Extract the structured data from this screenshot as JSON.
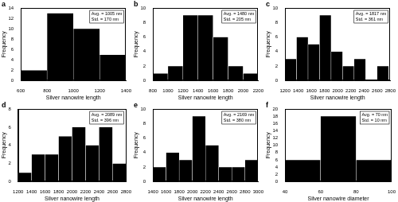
{
  "chart_data": [
    {
      "type": "histogram",
      "title": "a",
      "x_label": "Silver nanowire length",
      "y_label": "Frequency",
      "bins": [
        600,
        800,
        1000,
        1200,
        1400
      ],
      "values": [
        2,
        13,
        10,
        5
      ],
      "color": "#000000",
      "xlim": [
        600,
        1400
      ],
      "xticks": [
        600,
        800,
        1000,
        1200,
        1400
      ],
      "ylim": [
        0,
        14
      ],
      "yticks": [
        0,
        2,
        4,
        6,
        8,
        10,
        12,
        14
      ],
      "grid": false,
      "annotations": [
        "Avg. = 1005 nm",
        "Std. = 170 nm"
      ]
    },
    {
      "type": "histogram",
      "title": "b",
      "x_label": "Silver nanowire length",
      "y_label": "Frequency",
      "bins": [
        800,
        1000,
        1200,
        1400,
        1600,
        1800,
        2000,
        2200
      ],
      "values": [
        1,
        2,
        9,
        9,
        6,
        2,
        1
      ],
      "color": "#000000",
      "xlim": [
        800,
        2200
      ],
      "xticks": [
        800,
        1000,
        1200,
        1400,
        1600,
        1800,
        2000,
        2200
      ],
      "ylim": [
        0,
        10
      ],
      "yticks": [
        0,
        2,
        4,
        6,
        8,
        10
      ],
      "grid": false,
      "annotations": [
        "Avg. = 1480 nm",
        "Std. = 205 nm"
      ]
    },
    {
      "type": "histogram",
      "title": "c",
      "x_label": "Silver nanowire length",
      "y_label": "Frequency",
      "bins": [
        1200,
        1375,
        1550,
        1725,
        1900,
        2075,
        2250,
        2425,
        2600,
        2775
      ],
      "values": [
        3,
        6,
        5,
        9,
        4,
        2,
        3,
        0,
        2
      ],
      "color": "#000000",
      "xlim": [
        1200,
        2800
      ],
      "xticks": [
        1200,
        1400,
        1600,
        1800,
        2000,
        2200,
        2400,
        2600,
        2800
      ],
      "ylim": [
        0,
        10
      ],
      "yticks": [
        0,
        2,
        4,
        6,
        8,
        10
      ],
      "grid": false,
      "annotations": [
        "Avg. = 1817 nm",
        "Std. = 361 nm"
      ]
    },
    {
      "type": "histogram",
      "title": "d",
      "x_label": "Silver nanowire length",
      "y_label": "Frequency",
      "bins": [
        1200,
        1400,
        1600,
        1800,
        2000,
        2200,
        2400,
        2600,
        2800
      ],
      "values": [
        1,
        3,
        3,
        5,
        6,
        4,
        6,
        2
      ],
      "color": "#000000",
      "xlim": [
        1200,
        2800
      ],
      "xticks": [
        1200,
        1400,
        1600,
        1800,
        2000,
        2200,
        2400,
        2600,
        2800
      ],
      "ylim": [
        0,
        8
      ],
      "yticks": [
        0,
        2,
        4,
        6,
        8
      ],
      "grid": false,
      "annotations": [
        "Avg. = 2089 nm",
        "Std. = 396 nm"
      ]
    },
    {
      "type": "histogram",
      "title": "e",
      "x_label": "Silver nanowire length",
      "y_label": "Frequency",
      "bins": [
        1400,
        1600,
        1800,
        2000,
        2200,
        2400,
        2600,
        2800,
        3000
      ],
      "values": [
        2,
        4,
        3,
        9,
        5,
        2,
        2,
        3
      ],
      "color": "#000000",
      "xlim": [
        1400,
        3000
      ],
      "xticks": [
        1400,
        1600,
        1800,
        2000,
        2200,
        2400,
        2600,
        2800,
        3000
      ],
      "ylim": [
        0,
        10
      ],
      "yticks": [
        0,
        2,
        4,
        6,
        8,
        10
      ],
      "grid": false,
      "annotations": [
        "Avg. = 2169 nm",
        "Std. = 380 nm"
      ]
    },
    {
      "type": "histogram",
      "title": "f",
      "x_label": "Silver nanowire diameter",
      "y_label": "Frequency",
      "bins": [
        40,
        60,
        80,
        100
      ],
      "values": [
        6,
        18,
        6
      ],
      "color": "#000000",
      "xlim": [
        40,
        100
      ],
      "xticks": [
        40,
        60,
        80,
        100
      ],
      "ylim": [
        0,
        20
      ],
      "yticks": [
        0,
        2,
        4,
        6,
        8,
        10,
        12,
        14,
        16,
        18,
        20
      ],
      "grid": false,
      "annotations": [
        "Avg. = 70 nm",
        "Std. = 10 nm"
      ]
    }
  ]
}
